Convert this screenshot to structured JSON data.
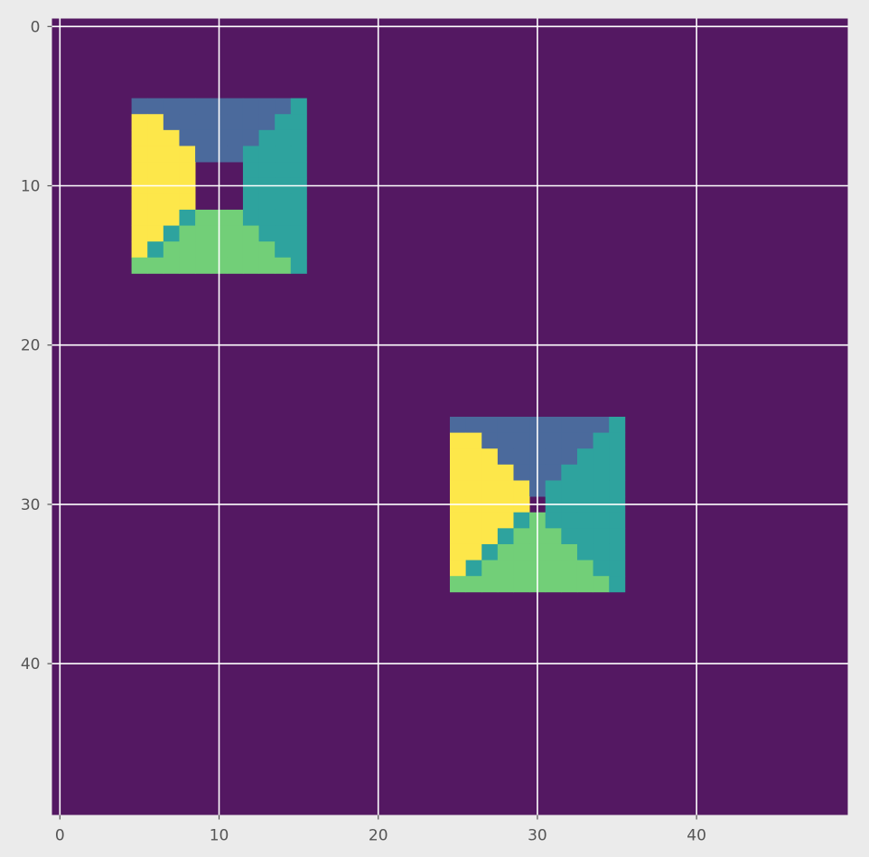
{
  "chart_data": {
    "type": "heatmap",
    "title": "",
    "xlabel": "",
    "ylabel": "",
    "shape": [
      50,
      50
    ],
    "xlim": [
      -0.5,
      49.5
    ],
    "ylim": [
      49.5,
      -0.5
    ],
    "y_axis_inverted": true,
    "xticks": [
      0,
      10,
      20,
      30,
      40
    ],
    "yticks": [
      0,
      10,
      20,
      30,
      40
    ],
    "xtick_labels": [
      "0",
      "10",
      "20",
      "30",
      "40"
    ],
    "ytick_labels": [
      "0",
      "10",
      "20",
      "30",
      "40"
    ],
    "grid": true,
    "background_value": 0,
    "colormap": "viridis",
    "value_colors": {
      "0": "#541862",
      "1": "#4b6a9c",
      "2": "#2ea39e",
      "3": "#72cf78",
      "4": "#fde74a"
    },
    "blocks": [
      {
        "rows": [
          5,
          15
        ],
        "cols": [
          5,
          15
        ],
        "hole_rows": [
          9,
          11
        ],
        "hole_cols": [
          9,
          11
        ]
      },
      {
        "rows": [
          25,
          35
        ],
        "cols": [
          25,
          35
        ],
        "hole_rows": [
          30,
          30
        ],
        "hole_cols": [
          30,
          30
        ]
      }
    ],
    "block_fill_rule": {
      "1": "top triangle (top row and above the diagonals)",
      "2": "right triangle (right column)",
      "3": "bottom triangle (bottom row)",
      "4": "left triangle (left column)"
    }
  },
  "colors": {
    "figure_background": "#ebebeb",
    "grid": "#ffffff",
    "tick_text": "#555555"
  }
}
